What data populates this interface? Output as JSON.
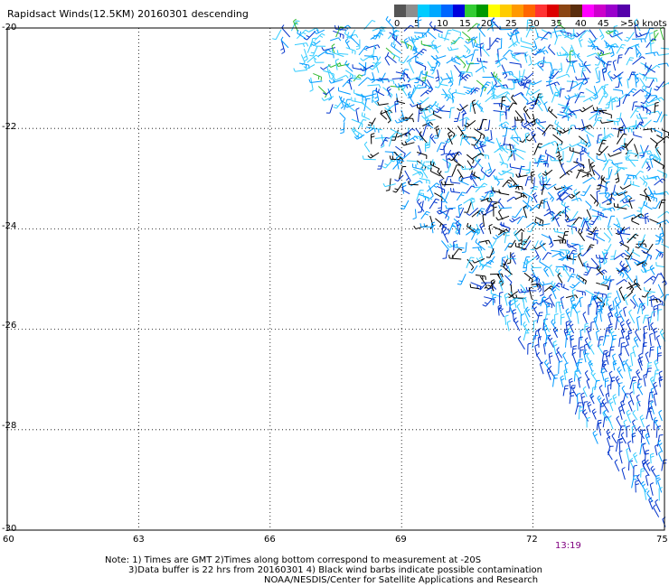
{
  "title": "Rapidsact Winds(12.5KM) 20160301 descending",
  "colorbar": {
    "segments": [
      {
        "color": "#555555"
      },
      {
        "color": "#8e8e8e"
      },
      {
        "color": "#00ccff"
      },
      {
        "color": "#00a8ff"
      },
      {
        "color": "#0066ff"
      },
      {
        "color": "#0000dd"
      },
      {
        "color": "#33cc33"
      },
      {
        "color": "#009900"
      },
      {
        "color": "#ffff00"
      },
      {
        "color": "#ffcc00"
      },
      {
        "color": "#ff9900"
      },
      {
        "color": "#ff6600"
      },
      {
        "color": "#ff3333"
      },
      {
        "color": "#dd0000"
      },
      {
        "color": "#8b4513"
      },
      {
        "color": "#5a2d0c"
      },
      {
        "color": "#ff00ff"
      },
      {
        "color": "#cc00cc"
      },
      {
        "color": "#9900cc"
      },
      {
        "color": "#5500aa"
      }
    ],
    "labels": [
      "0",
      "5",
      "10",
      "15",
      "20",
      "25",
      "30",
      "35",
      "40",
      "45",
      ">50 knots"
    ]
  },
  "axes": {
    "y_labels": [
      "-20",
      "-22",
      "-24",
      "-26",
      "-28",
      "-30"
    ],
    "x_labels": [
      "60",
      "63",
      "66",
      "69",
      "72",
      "75"
    ],
    "lon_range": [
      60,
      75
    ],
    "lat_range": [
      -30,
      -20
    ]
  },
  "swath": {
    "edge_start": {
      "lon": 66,
      "lat": -20
    },
    "edge_end": {
      "lon": 75,
      "lat": -30
    },
    "wind_colors": {
      "light": "#33ccff",
      "mid": "#0099ff",
      "dark": "#0033cc",
      "green": "#33bb33",
      "yellow": "#ffdd00",
      "contaminated": "#000000"
    }
  },
  "time_label": "13:19",
  "notes": {
    "line1": "Note: 1) Times are GMT 2)Times along bottom correspond to measurement at -20S",
    "line2": "3)Data buffer is 22 hrs from 20160301 4) Black wind barbs indicate possible contamination",
    "line3": "NOAA/NESDIS/Center for Satellite Applications and Research"
  }
}
